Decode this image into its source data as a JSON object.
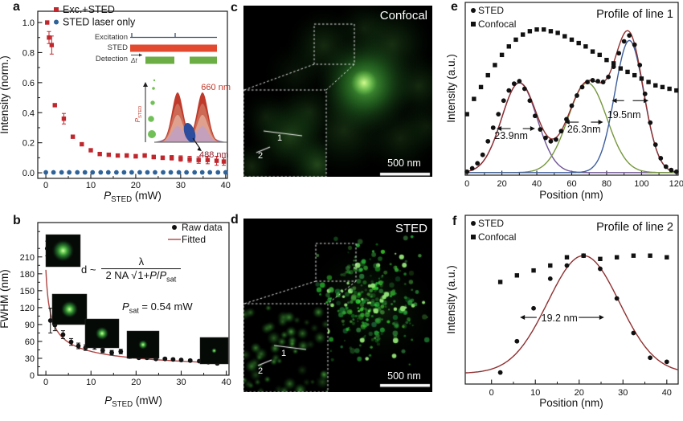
{
  "figure_bg": "#ffffff",
  "panel_letters": [
    "a",
    "b",
    "c",
    "d",
    "e",
    "f"
  ],
  "colors": {
    "red_marker": "#c0272d",
    "blue_marker": "#2e6399",
    "black_marker": "#111111",
    "fit_red_b": "#b04543",
    "fit_red_ef": "#8f2f2f",
    "gauss_purple": "#6e5494",
    "gauss_green": "#75973c",
    "gauss_blue": "#3c5d9c"
  },
  "formula": {
    "lhs": "d ~",
    "num": "λ",
    "den_pre": "2 NA ",
    "sqrt_sym": "√",
    "radicand": "1+*P*/*P*_[sat]",
    "psat": "*P*_[sat] = 0.54 mW"
  },
  "timing_inset": {
    "rows": [
      "Excitation",
      "STED",
      "Detection"
    ],
    "delta_label": "Δt",
    "line_color": "#3f5266",
    "sted_color": "#e2492e",
    "detection_color": "#6cae45"
  },
  "spectra_inset": {
    "axis_label": "*P*_[STED]",
    "peak_label": "660 nm",
    "dip_label": "488 nm",
    "peak_color": "#c0392b",
    "dip_color": "#2c4d9d",
    "dot_color": "#58b53a",
    "dip_label_color": "#8b2430"
  },
  "micrographs": {
    "c": {
      "label": "Confocal",
      "scale_label": "500 nm",
      "line_labels": [
        "1",
        "2"
      ]
    },
    "d": {
      "label": "STED",
      "scale_label": "500 nm",
      "line_labels": [
        "1",
        "2"
      ]
    }
  },
  "chart_data": [
    {
      "id": "a",
      "type": "scatter",
      "xlabel": "*P*_[STED] (mW)",
      "ylabel": "Intensity (norm.)",
      "xlim": [
        -1.8,
        40.4
      ],
      "ylim": [
        -0.037,
        1.075
      ],
      "xticks": {
        "vals": [
          0,
          10,
          20,
          30,
          40
        ],
        "labels": [
          "0",
          "10",
          "20",
          "30",
          "40"
        ],
        "minor": [
          5,
          15,
          25,
          35
        ]
      },
      "yticks": {
        "vals": [
          0,
          0.2,
          0.4,
          0.6,
          0.8,
          1.0
        ],
        "labels": [
          "0.0",
          "0.2",
          "0.4",
          "0.6",
          "0.8",
          "1.0"
        ],
        "minor": [
          0.1,
          0.3,
          0.5,
          0.7,
          0.9
        ]
      },
      "series": [
        {
          "name": "Exc.+STED",
          "kind": "scatter",
          "marker": "square",
          "color": "#c0272d",
          "x": [
            0.3,
            0.7,
            1.3,
            2,
            4,
            6,
            8,
            10,
            12,
            14,
            16,
            18,
            20,
            22,
            24,
            26,
            28,
            30,
            32,
            34,
            36,
            38,
            39.6
          ],
          "y": [
            1.0,
            0.9,
            0.85,
            0.45,
            0.36,
            0.24,
            0.19,
            0.15,
            0.125,
            0.12,
            0.115,
            0.115,
            0.11,
            0.115,
            0.105,
            0.1,
            0.1,
            0.095,
            0.09,
            0.085,
            0.085,
            0.08,
            0.075
          ],
          "err": [
            0,
            0.04,
            0.06,
            0,
            0.035,
            0,
            0,
            0,
            0.01,
            0.01,
            0.01,
            0.012,
            0.012,
            0.012,
            0.012,
            0.012,
            0.015,
            0.018,
            0.02,
            0.022,
            0.025,
            0.03,
            0.025
          ]
        },
        {
          "name": "STED laser only",
          "kind": "scatter",
          "marker": "circle",
          "color": "#2e6399",
          "x": [
            0,
            1.7,
            3.5,
            5.2,
            7,
            8.7,
            10.4,
            12.2,
            13.9,
            15.7,
            17.4,
            19.1,
            20.9,
            22.6,
            24.3,
            26.1,
            27.8,
            29.6,
            31.3,
            33.1,
            34.8,
            36.5,
            38.3,
            40
          ],
          "y": [
            0.003,
            0.003,
            0.003,
            0.003,
            0.003,
            0.003,
            0.003,
            0.003,
            0.003,
            0.003,
            0.003,
            0.003,
            0.003,
            0.003,
            0.003,
            0.003,
            0.003,
            0.003,
            0.003,
            0.003,
            0.003,
            0.003,
            0.003,
            0.003
          ]
        }
      ],
      "legend": [
        {
          "label": "Exc.+STED",
          "marker": "square",
          "color": "#c0272d"
        },
        {
          "label": "STED laser only",
          "marker": "circle",
          "color": "#2e6399"
        }
      ]
    },
    {
      "id": "b",
      "type": "scatter",
      "xlabel": "*P*_[STED] (mW)",
      "ylabel": "FWHM (nm)",
      "xlim": [
        -1.8,
        40.6
      ],
      "ylim": [
        0,
        271
      ],
      "xticks": {
        "vals": [
          0,
          10,
          20,
          30,
          40
        ],
        "labels": [
          "0",
          "10",
          "20",
          "30",
          "40"
        ],
        "minor": [
          5,
          15,
          25,
          35
        ]
      },
      "yticks": {
        "vals": [
          0,
          30,
          60,
          90,
          120,
          150,
          180,
          210
        ],
        "labels": [
          "0",
          "30",
          "60",
          "90",
          "120",
          "150",
          "180",
          "210"
        ],
        "minor": [
          15,
          45,
          75,
          105,
          135,
          165,
          195,
          225,
          255
        ]
      },
      "series": [
        {
          "name": "Fitted",
          "kind": "curve",
          "fn": "sat",
          "A": 187,
          "psat": 0.54,
          "domain": [
            0,
            38.6
          ],
          "color": "#b04543"
        },
        {
          "name": "Raw data",
          "kind": "scatter",
          "marker": "circle",
          "color": "#111111",
          "x": [
            0.3,
            1,
            2,
            3.8,
            5.6,
            7.2,
            8.8,
            10.8,
            12.6,
            14.6,
            16.6,
            18.6,
            20.6,
            22.4,
            24.4,
            26.4,
            28.2,
            30,
            32,
            34,
            36,
            38
          ],
          "y": [
            225,
            97,
            89,
            72,
            59,
            52,
            49,
            51,
            44,
            40,
            42,
            33,
            31,
            31,
            29,
            29,
            28,
            27,
            26,
            25,
            23,
            21
          ],
          "err": [
            13,
            22,
            10,
            7,
            6,
            5,
            5,
            5,
            4,
            4,
            4,
            3,
            2,
            2,
            2,
            2,
            2,
            2,
            2,
            2,
            2,
            2
          ]
        }
      ],
      "legend": [
        {
          "label": "Raw data",
          "marker": "circle",
          "color": "#111111"
        },
        {
          "label": "Fitted",
          "marker": "line",
          "color": "#b04543"
        }
      ],
      "fit_params": {
        "P_sat_mW": 0.54
      }
    },
    {
      "id": "e",
      "type": "line",
      "title": "Profile of line 1",
      "xlabel": "Position (nm)",
      "ylabel": "Intensity (a.u.)",
      "xlim": [
        -1,
        121
      ],
      "ylim": [
        0,
        1.02
      ],
      "xticks": {
        "vals": [
          0,
          20,
          40,
          60,
          80,
          100,
          120
        ],
        "labels": [
          "0",
          "20",
          "40",
          "60",
          "80",
          "100",
          "120"
        ],
        "minor": [
          10,
          30,
          50,
          70,
          90,
          110
        ]
      },
      "yticks": {
        "vals": [],
        "labels": [],
        "minor": []
      },
      "series": [
        {
          "name": "peak1-fit",
          "kind": "curve",
          "fn": "gauss",
          "baseline": 0.015,
          "a": 0.53,
          "c": 30,
          "fwhm": 23.9,
          "domain": [
            0,
            120
          ],
          "color": "#6e5494"
        },
        {
          "name": "peak2-fit",
          "kind": "curve",
          "fn": "gauss",
          "baseline": 0.015,
          "a": 0.53,
          "c": 69,
          "fwhm": 26.3,
          "domain": [
            0,
            120
          ],
          "color": "#75973c"
        },
        {
          "name": "peak3-fit",
          "kind": "curve",
          "fn": "gauss",
          "baseline": 0.015,
          "a": 0.78,
          "c": 93,
          "fwhm": 19.5,
          "domain": [
            0,
            120
          ],
          "color": "#3c5d9c"
        },
        {
          "name": "total-fit",
          "kind": "curve",
          "fn": "gsum",
          "baseline": 0.015,
          "components": [
            [
              0.53,
              30,
              23.9
            ],
            [
              0.53,
              69,
              26.3
            ],
            [
              0.78,
              93,
              19.5
            ]
          ],
          "domain": [
            0,
            120
          ],
          "color": "#8f2f2f"
        },
        {
          "name": "Confocal",
          "kind": "scatter",
          "marker": "square",
          "color": "#111111",
          "x": [
            0,
            4,
            8,
            12,
            16,
            20,
            24,
            28,
            32,
            36,
            40,
            44,
            48,
            52,
            56,
            60,
            64,
            68,
            72,
            76,
            80,
            84,
            88,
            92,
            96,
            100,
            104,
            108,
            112,
            116,
            120
          ],
          "y": [
            0.36,
            0.45,
            0.52,
            0.59,
            0.65,
            0.71,
            0.76,
            0.8,
            0.83,
            0.85,
            0.86,
            0.86,
            0.85,
            0.84,
            0.82,
            0.8,
            0.78,
            0.76,
            0.73,
            0.71,
            0.68,
            0.66,
            0.63,
            0.61,
            0.59,
            0.57,
            0.55,
            0.53,
            0.52,
            0.51,
            0.5
          ]
        },
        {
          "name": "STED",
          "kind": "scatter",
          "marker": "circle",
          "color": "#111111",
          "x": [
            0,
            3,
            6,
            9,
            12,
            15,
            18,
            21,
            24,
            27,
            30,
            33,
            36,
            39,
            42,
            45,
            48,
            51,
            54,
            57,
            60,
            63,
            66,
            69,
            72,
            75,
            78,
            81,
            84,
            87,
            90,
            93,
            96,
            99,
            102,
            105,
            108,
            111,
            114,
            117,
            120
          ],
          "y": [
            0.02,
            0.04,
            0.07,
            0.12,
            0.2,
            0.28,
            0.36,
            0.44,
            0.5,
            0.54,
            0.555,
            0.51,
            0.44,
            0.35,
            0.27,
            0.22,
            0.2,
            0.21,
            0.26,
            0.33,
            0.41,
            0.47,
            0.52,
            0.55,
            0.56,
            0.555,
            0.55,
            0.58,
            0.64,
            0.72,
            0.79,
            0.825,
            0.77,
            0.65,
            0.48,
            0.31,
            0.18,
            0.1,
            0.05,
            0.03,
            0.02
          ]
        }
      ],
      "legend": [
        {
          "label": "STED",
          "marker": "circle",
          "color": "#111111"
        },
        {
          "label": "Confocal",
          "marker": "square",
          "color": "#111111"
        }
      ],
      "annotations": [
        {
          "label": "23.9nm",
          "tx": 25.3,
          "ty": 0.214,
          "ay": 0.275,
          "lx1": 25,
          "lx2": 17,
          "rx1": 32,
          "rx2": 39
        },
        {
          "label": "26.3nm",
          "tx": 67,
          "ty": 0.251,
          "ay": 0.313,
          "lx1": 64,
          "lx2": 56,
          "rx1": 71,
          "rx2": 78
        },
        {
          "label": "19.5nm",
          "tx": 90,
          "ty": 0.337,
          "ay": 0.44,
          "lx1": 90,
          "lx2": 83,
          "rx1": 95,
          "rx2": 104
        }
      ]
    },
    {
      "id": "f",
      "type": "line",
      "title": "Profile of line 2",
      "xlabel": "Position (nm)",
      "ylabel": "Intensity (a.u.)",
      "xlim": [
        -6,
        42.6
      ],
      "ylim": [
        0,
        1.025
      ],
      "xticks": {
        "vals": [
          0,
          10,
          20,
          30,
          40
        ],
        "labels": [
          "0",
          "10",
          "20",
          "30",
          "40"
        ],
        "minor": [
          5,
          15,
          25,
          35
        ]
      },
      "yticks": {
        "vals": [],
        "labels": [],
        "minor": []
      },
      "series": [
        {
          "name": "gauss-fit",
          "kind": "curve",
          "fn": "gauss",
          "baseline": 0.065,
          "a": 0.715,
          "c": 21,
          "fwhm": 19.2,
          "domain": [
            -6,
            42.6
          ],
          "color": "#8f2f2f"
        },
        {
          "name": "Confocal",
          "kind": "scatter",
          "marker": "square",
          "color": "#111111",
          "x": [
            2,
            5.8,
            9.6,
            13.4,
            17.2,
            21,
            24.8,
            28.6,
            32.4,
            36.2,
            40
          ],
          "y": [
            0.62,
            0.66,
            0.69,
            0.72,
            0.77,
            0.78,
            0.76,
            0.77,
            0.78,
            0.78,
            0.77
          ]
        },
        {
          "name": "STED",
          "kind": "scatter",
          "marker": "circle",
          "color": "#111111",
          "x": [
            2,
            5.8,
            9.6,
            13.4,
            17.2,
            21,
            24.8,
            28.6,
            32.4,
            36.2,
            40
          ],
          "y": [
            0.07,
            0.26,
            0.46,
            0.64,
            0.72,
            0.78,
            0.7,
            0.52,
            0.31,
            0.16,
            0.135
          ]
        }
      ],
      "legend": [
        {
          "label": "STED",
          "marker": "circle",
          "color": "#111111"
        },
        {
          "label": "Confocal",
          "marker": "square",
          "color": "#111111"
        }
      ],
      "annotations": [
        {
          "label": "19.2 nm",
          "tx": 15.5,
          "ty": 0.38,
          "ay": 0.405,
          "lx1": 10.3,
          "lx2": 6.5,
          "rx1": 19.9,
          "rx2": 25.7
        }
      ]
    }
  ]
}
